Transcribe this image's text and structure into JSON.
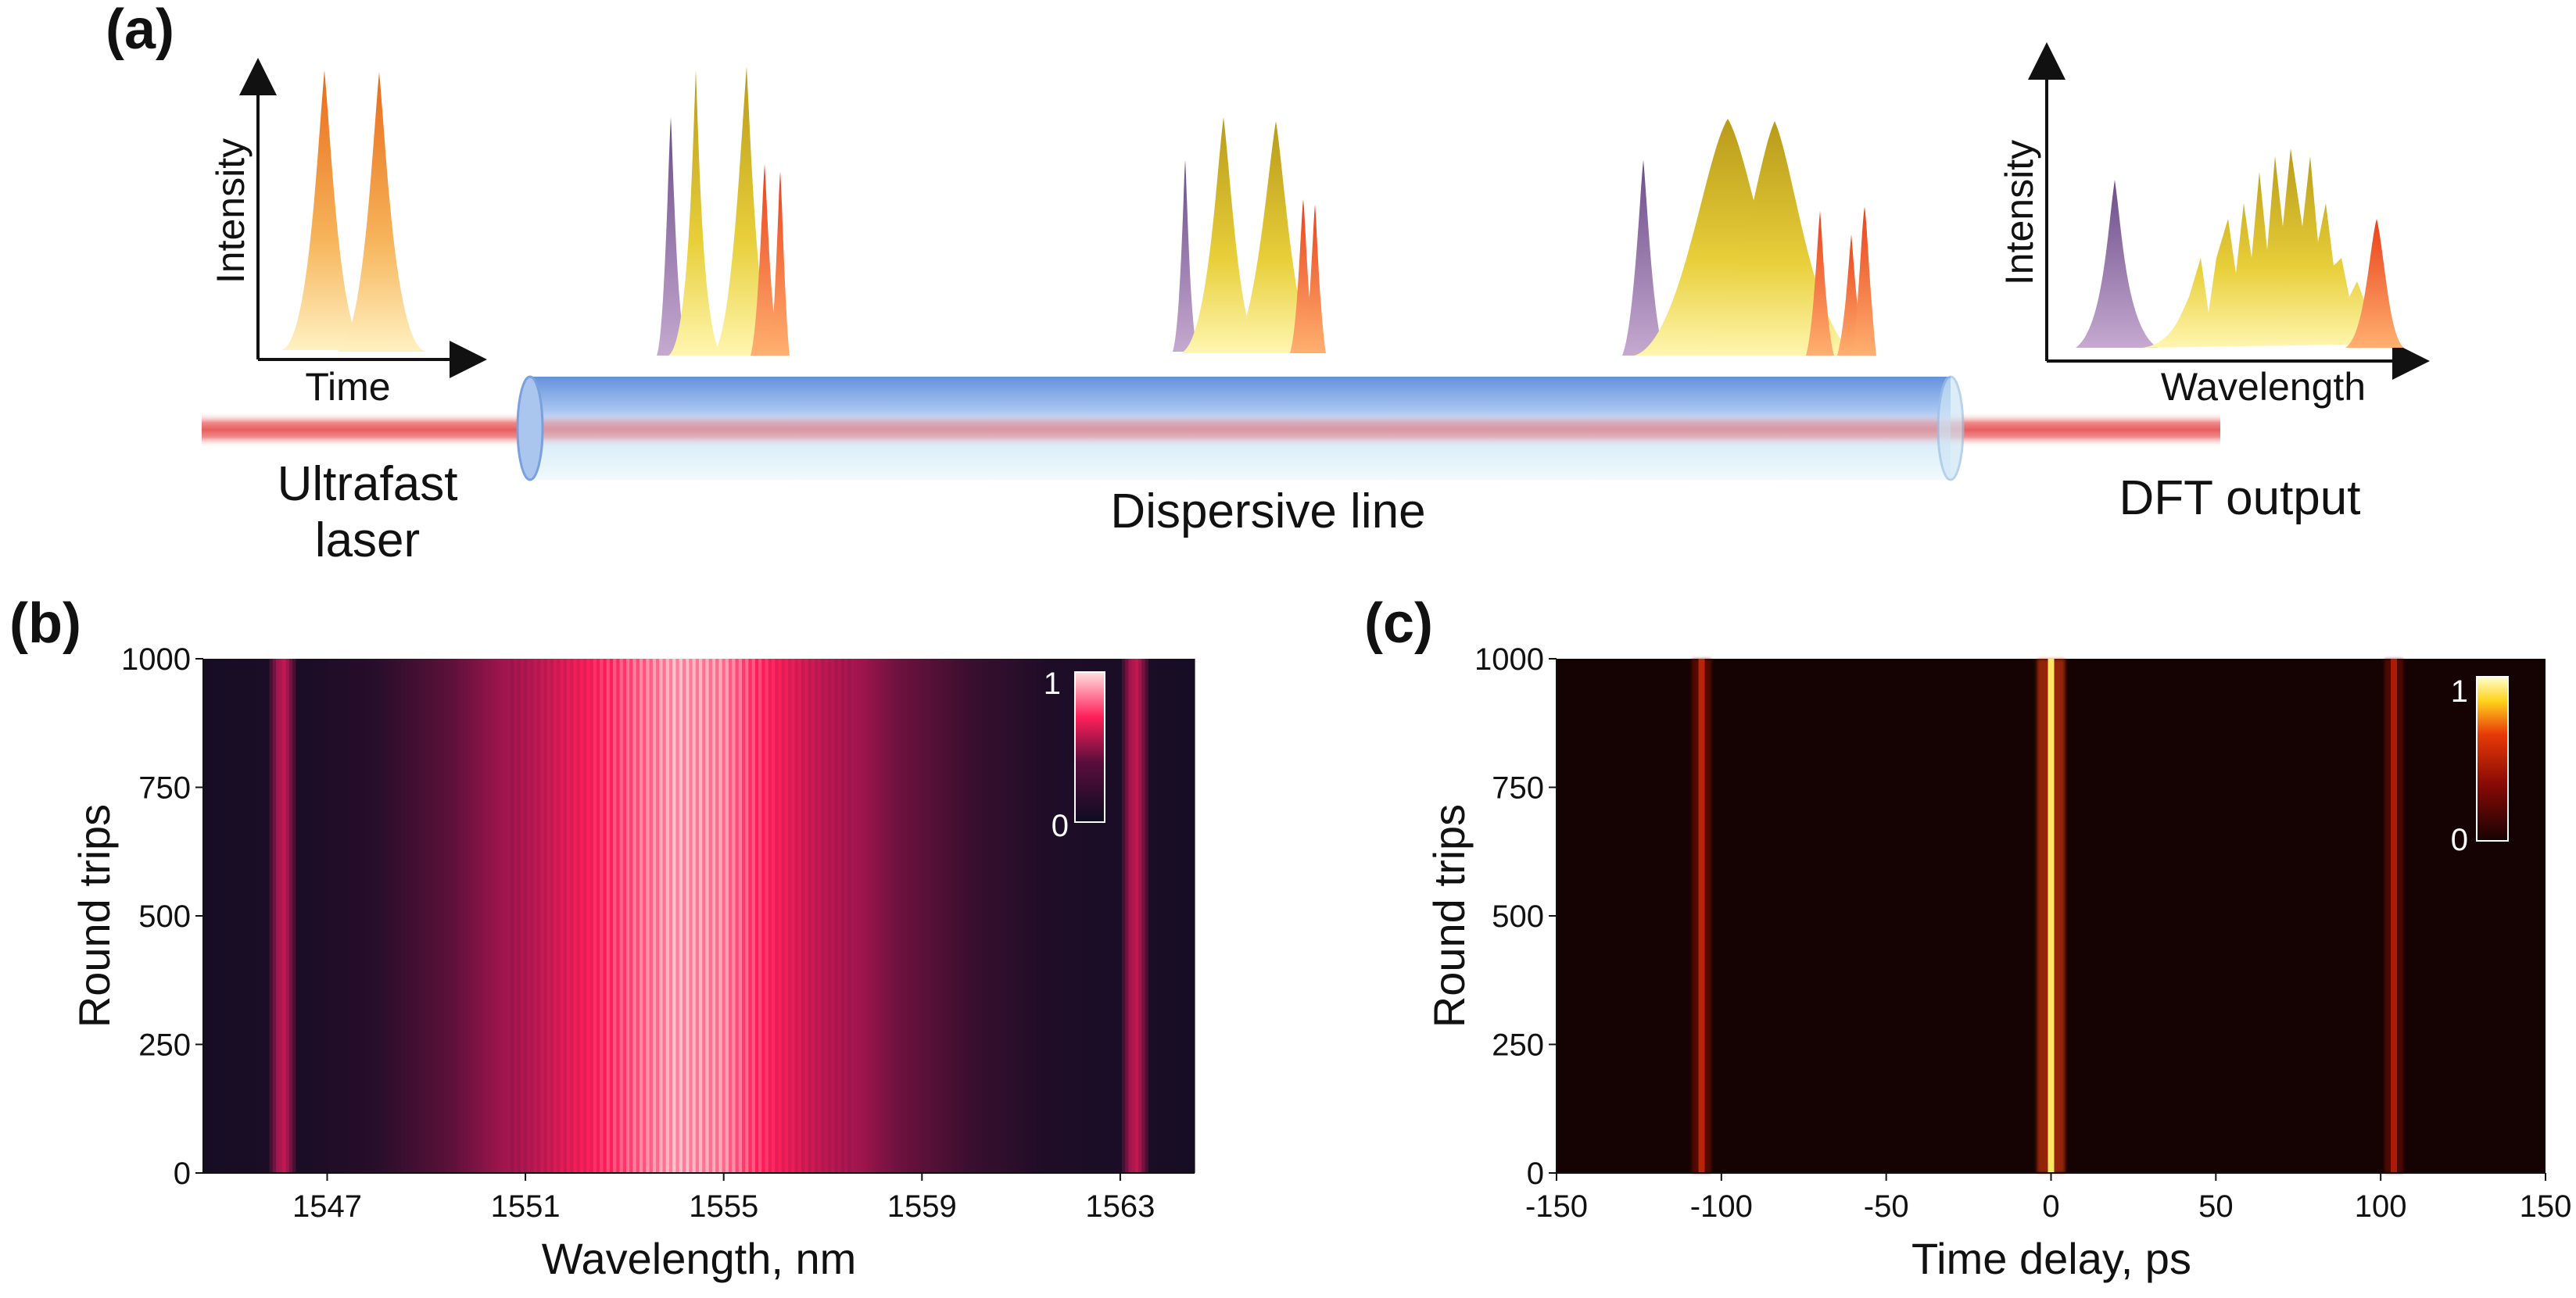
{
  "panel_a": {
    "label": "(a)",
    "input_plot": {
      "ylabel": "Intensity",
      "xlabel": "Time"
    },
    "output_plot": {
      "ylabel": "Intensity",
      "xlabel": "Wavelength"
    },
    "source_label_line1": "Ultrafast",
    "source_label_line2": "laser",
    "fiber_label": "Dispersive line",
    "output_label": "DFT output"
  },
  "chart_data": [
    {
      "panel": "(b)",
      "type": "heatmap",
      "xlabel": "Wavelength, nm",
      "ylabel": "Round trips",
      "xlim": [
        1544.5,
        1564.5
      ],
      "ylim": [
        0,
        1000
      ],
      "xticks": [
        1547,
        1551,
        1555,
        1559,
        1563
      ],
      "yticks": [
        0,
        250,
        500,
        750,
        1000
      ],
      "colorbar": {
        "min_label": "0",
        "max_label": "1",
        "colors": [
          "#0d0c22",
          "#a0154d",
          "#ff1f5a",
          "#ffe0e0"
        ]
      },
      "colors": {
        "background": "#0d0c22",
        "mid": "#8a1650",
        "peak": "#ff5a82"
      },
      "profile": [
        {
          "x": 1544.5,
          "v": 0.02
        },
        {
          "x": 1545.8,
          "v": 0.03
        },
        {
          "x": 1546.1,
          "v": 0.5
        },
        {
          "x": 1546.4,
          "v": 0.03
        },
        {
          "x": 1548.0,
          "v": 0.06
        },
        {
          "x": 1549.5,
          "v": 0.18
        },
        {
          "x": 1551.0,
          "v": 0.4
        },
        {
          "x": 1552.0,
          "v": 0.62
        },
        {
          "x": 1553.0,
          "v": 0.8
        },
        {
          "x": 1554.0,
          "v": 0.95
        },
        {
          "x": 1555.0,
          "v": 0.9
        },
        {
          "x": 1556.0,
          "v": 0.68
        },
        {
          "x": 1557.0,
          "v": 0.45
        },
        {
          "x": 1558.5,
          "v": 0.22
        },
        {
          "x": 1560.0,
          "v": 0.1
        },
        {
          "x": 1561.5,
          "v": 0.04
        },
        {
          "x": 1563.0,
          "v": 0.03
        },
        {
          "x": 1563.3,
          "v": 0.5
        },
        {
          "x": 1563.6,
          "v": 0.03
        },
        {
          "x": 1564.5,
          "v": 0.02
        }
      ]
    },
    {
      "panel": "(c)",
      "type": "heatmap",
      "xlabel": "Time delay, ps",
      "ylabel": "Round trips",
      "xlim": [
        -150,
        150
      ],
      "ylim": [
        0,
        1000
      ],
      "xticks": [
        -150,
        -100,
        -50,
        0,
        50,
        100,
        150
      ],
      "yticks": [
        0,
        250,
        500,
        750,
        1000
      ],
      "colorbar": {
        "min_label": "0",
        "max_label": "1",
        "colors": [
          "#150303",
          "#8a0a05",
          "#e83a08",
          "#ffd21a",
          "#ffffd0"
        ]
      },
      "colors": {
        "background": "#150303"
      },
      "lines": [
        {
          "x": -106,
          "intensity": 0.45
        },
        {
          "x": 0,
          "intensity": 1.0
        },
        {
          "x": 104,
          "intensity": 0.4
        }
      ]
    }
  ]
}
